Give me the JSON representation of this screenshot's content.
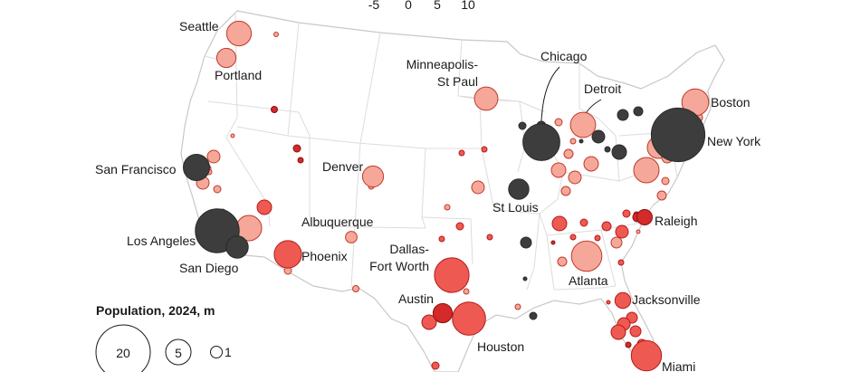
{
  "scale_ticks": [
    "-5",
    "0",
    "5",
    "10"
  ],
  "legend": {
    "title": "Population, 2024, m",
    "sizes": [
      {
        "label": "20",
        "pop": 20
      },
      {
        "label": "5",
        "pop": 5
      },
      {
        "label": "1",
        "pop": 1
      }
    ]
  },
  "categories": [
    {
      "name": "dark",
      "color": "#3d3d3d",
      "stroke": "#2a2a2a"
    },
    {
      "name": "light",
      "color": "#f5a899",
      "stroke": "#c0392b"
    },
    {
      "name": "mid",
      "color": "#ee5a52",
      "stroke": "#b51a1a"
    },
    {
      "name": "deep",
      "color": "#d42a2a",
      "stroke": "#8e0f0f"
    }
  ],
  "cities": [
    {
      "name": "Seattle",
      "cat": "light",
      "pop": 4.1
    },
    {
      "name": "Portland",
      "cat": "light",
      "pop": 2.5
    },
    {
      "name": "San Francisco",
      "cat": "dark",
      "pop": 4.7
    },
    {
      "name": "Los Angeles",
      "cat": "dark",
      "pop": 13.0
    },
    {
      "name": "San Diego",
      "cat": "dark",
      "pop": 3.3
    },
    {
      "name": "Phoenix",
      "cat": "mid",
      "pop": 5.1
    },
    {
      "name": "Denver",
      "cat": "light",
      "pop": 3.0
    },
    {
      "name": "Albuquerque",
      "cat": "light",
      "pop": 0.9
    },
    {
      "name": "Dallas-\nFort Worth",
      "cat": "mid",
      "pop": 8.1
    },
    {
      "name": "Austin",
      "cat": "deep",
      "pop": 2.5
    },
    {
      "name": "Houston",
      "cat": "mid",
      "pop": 7.5
    },
    {
      "name": "Minneapolis-\nSt Paul",
      "cat": "light",
      "pop": 3.7
    },
    {
      "name": "Chicago",
      "cat": "dark",
      "pop": 9.3
    },
    {
      "name": "St Louis",
      "cat": "dark",
      "pop": 2.8
    },
    {
      "name": "Detroit",
      "cat": "light",
      "pop": 4.3
    },
    {
      "name": "Atlanta",
      "cat": "light",
      "pop": 6.3
    },
    {
      "name": "Raleigh",
      "cat": "deep",
      "pop": 1.6
    },
    {
      "name": "Jacksonville",
      "cat": "mid",
      "pop": 1.7
    },
    {
      "name": "Miami",
      "cat": "mid",
      "pop": 6.2
    },
    {
      "name": "Boston",
      "cat": "light",
      "pop": 4.9
    },
    {
      "name": "New York",
      "cat": "dark",
      "pop": 19.5
    }
  ]
}
